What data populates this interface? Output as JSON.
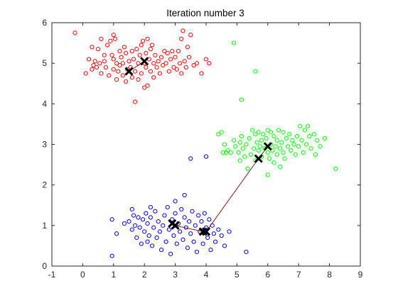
{
  "chart_data": {
    "type": "scatter",
    "title": "Iteration number 3",
    "xlabel": "",
    "ylabel": "",
    "xlim": [
      -1,
      9
    ],
    "ylim": [
      0,
      6
    ],
    "x_ticks": [
      "-1",
      "0",
      "1",
      "2",
      "3",
      "4",
      "5",
      "6",
      "7",
      "8",
      "9"
    ],
    "y_ticks": [
      "0",
      "1",
      "2",
      "3",
      "4",
      "5",
      "6"
    ],
    "grid": false,
    "legend": "none",
    "series": [
      {
        "color": "#ff0000",
        "marker": "circle-open",
        "points": [
          [
            -0.25,
            5.75
          ],
          [
            0.1,
            4.75
          ],
          [
            0.2,
            5.1
          ],
          [
            0.3,
            5.4
          ],
          [
            0.3,
            4.85
          ],
          [
            0.35,
            4.95
          ],
          [
            0.4,
            5.05
          ],
          [
            0.45,
            4.9
          ],
          [
            0.5,
            5.35
          ],
          [
            0.55,
            5.0
          ],
          [
            0.6,
            5.6
          ],
          [
            0.6,
            4.75
          ],
          [
            0.7,
            5.2
          ],
          [
            0.7,
            5.05
          ],
          [
            0.75,
            4.9
          ],
          [
            0.8,
            5.45
          ],
          [
            0.85,
            4.7
          ],
          [
            0.9,
            5.55
          ],
          [
            0.95,
            5.2
          ],
          [
            1.0,
            4.85
          ],
          [
            1.0,
            5.1
          ],
          [
            1.0,
            5.7
          ],
          [
            1.05,
            5.6
          ],
          [
            1.1,
            4.6
          ],
          [
            1.1,
            5.0
          ],
          [
            1.15,
            4.8
          ],
          [
            1.2,
            5.3
          ],
          [
            1.2,
            4.95
          ],
          [
            1.25,
            5.15
          ],
          [
            1.3,
            4.7
          ],
          [
            1.3,
            5.0
          ],
          [
            1.35,
            5.4
          ],
          [
            1.4,
            4.55
          ],
          [
            1.4,
            5.25
          ],
          [
            1.45,
            4.85
          ],
          [
            1.5,
            5.05
          ],
          [
            1.55,
            4.9
          ],
          [
            1.6,
            5.3
          ],
          [
            1.6,
            4.65
          ],
          [
            1.65,
            5.1
          ],
          [
            1.7,
            4.05
          ],
          [
            1.7,
            4.8
          ],
          [
            1.75,
            5.35
          ],
          [
            1.8,
            5.0
          ],
          [
            1.8,
            4.6
          ],
          [
            1.85,
            5.2
          ],
          [
            1.9,
            4.75
          ],
          [
            1.9,
            5.45
          ],
          [
            1.95,
            5.55
          ],
          [
            2.0,
            4.4
          ],
          [
            2.0,
            5.0
          ],
          [
            2.05,
            4.9
          ],
          [
            2.05,
            5.25
          ],
          [
            2.1,
            4.45
          ],
          [
            2.1,
            5.6
          ],
          [
            2.15,
            5.1
          ],
          [
            2.2,
            4.8
          ],
          [
            2.2,
            5.35
          ],
          [
            2.25,
            5.45
          ],
          [
            2.3,
            5.0
          ],
          [
            2.3,
            4.65
          ],
          [
            2.35,
            5.2
          ],
          [
            2.4,
            4.9
          ],
          [
            2.45,
            5.05
          ],
          [
            2.5,
            4.75
          ],
          [
            2.55,
            5.15
          ],
          [
            2.6,
            4.95
          ],
          [
            2.65,
            5.3
          ],
          [
            2.7,
            5.0
          ],
          [
            2.75,
            5.25
          ],
          [
            2.8,
            4.8
          ],
          [
            2.85,
            5.1
          ],
          [
            2.9,
            5.3
          ],
          [
            2.95,
            4.9
          ],
          [
            3.0,
            5.15
          ],
          [
            3.05,
            4.85
          ],
          [
            3.1,
            5.3
          ],
          [
            3.15,
            5.0
          ],
          [
            3.2,
            4.75
          ],
          [
            3.2,
            5.6
          ],
          [
            3.25,
            5.8
          ],
          [
            3.3,
            5.05
          ],
          [
            3.35,
            4.9
          ],
          [
            3.4,
            5.4
          ],
          [
            3.45,
            5.15
          ],
          [
            3.5,
            5.7
          ],
          [
            3.6,
            4.95
          ],
          [
            3.7,
            5.0
          ],
          [
            3.85,
            4.75
          ],
          [
            4.0,
            5.1
          ],
          [
            4.1,
            5.0
          ]
        ]
      },
      {
        "color": "#00ff00",
        "marker": "circle-open",
        "points": [
          [
            4.9,
            5.5
          ],
          [
            5.6,
            4.8
          ],
          [
            5.15,
            4.1
          ],
          [
            5.1,
            3.05
          ],
          [
            4.4,
            3.25
          ],
          [
            4.5,
            3.3
          ],
          [
            4.55,
            2.8
          ],
          [
            4.6,
            3.0
          ],
          [
            4.65,
            2.8
          ],
          [
            4.7,
            2.85
          ],
          [
            4.8,
            2.8
          ],
          [
            4.9,
            3.1
          ],
          [
            4.95,
            2.95
          ],
          [
            5.05,
            2.8
          ],
          [
            5.1,
            2.6
          ],
          [
            5.15,
            3.2
          ],
          [
            5.2,
            2.9
          ],
          [
            5.25,
            2.7
          ],
          [
            5.3,
            3.0
          ],
          [
            5.35,
            2.4
          ],
          [
            5.4,
            3.15
          ],
          [
            5.45,
            2.75
          ],
          [
            5.5,
            3.35
          ],
          [
            5.55,
            2.9
          ],
          [
            5.6,
            3.25
          ],
          [
            5.6,
            2.6
          ],
          [
            5.65,
            3.05
          ],
          [
            5.7,
            2.85
          ],
          [
            5.7,
            3.3
          ],
          [
            5.75,
            2.95
          ],
          [
            5.8,
            3.1
          ],
          [
            5.8,
            2.7
          ],
          [
            5.85,
            3.25
          ],
          [
            5.9,
            2.9
          ],
          [
            5.95,
            3.15
          ],
          [
            6.0,
            2.8
          ],
          [
            6.0,
            3.35
          ],
          [
            6.05,
            2.65
          ],
          [
            6.1,
            3.0
          ],
          [
            6.1,
            3.3
          ],
          [
            6.15,
            2.85
          ],
          [
            6.2,
            3.2
          ],
          [
            6.2,
            2.55
          ],
          [
            6.25,
            2.95
          ],
          [
            6.3,
            2.75
          ],
          [
            6.3,
            3.1
          ],
          [
            6.35,
            3.35
          ],
          [
            6.4,
            2.9
          ],
          [
            6.45,
            3.05
          ],
          [
            6.5,
            2.8
          ],
          [
            6.5,
            3.3
          ],
          [
            6.55,
            2.65
          ],
          [
            6.6,
            3.15
          ],
          [
            6.65,
            2.95
          ],
          [
            6.7,
            3.25
          ],
          [
            6.75,
            2.85
          ],
          [
            6.8,
            3.1
          ],
          [
            6.85,
            3.0
          ],
          [
            6.9,
            2.75
          ],
          [
            6.95,
            3.2
          ],
          [
            7.0,
            2.95
          ],
          [
            7.05,
            3.45
          ],
          [
            7.1,
            3.1
          ],
          [
            7.15,
            2.8
          ],
          [
            7.2,
            3.35
          ],
          [
            7.25,
            3.0
          ],
          [
            7.3,
            3.45
          ],
          [
            7.35,
            3.2
          ],
          [
            7.4,
            2.9
          ],
          [
            7.5,
            3.25
          ],
          [
            7.55,
            2.75
          ],
          [
            7.6,
            3.1
          ],
          [
            7.7,
            2.95
          ],
          [
            7.85,
            3.15
          ],
          [
            8.2,
            2.4
          ],
          [
            6.0,
            2.25
          ],
          [
            6.4,
            2.45
          ]
        ]
      },
      {
        "color": "#0000ff",
        "marker": "circle-open",
        "points": [
          [
            0.95,
            0.25
          ],
          [
            0.95,
            1.15
          ],
          [
            1.1,
            0.8
          ],
          [
            1.35,
            1.05
          ],
          [
            1.5,
            1.1
          ],
          [
            1.6,
            0.9
          ],
          [
            1.65,
            1.25
          ],
          [
            1.7,
            1.0
          ],
          [
            1.75,
            0.7
          ],
          [
            1.8,
            1.2
          ],
          [
            1.85,
            0.95
          ],
          [
            1.9,
            0.55
          ],
          [
            1.95,
            1.15
          ],
          [
            2.0,
            0.85
          ],
          [
            2.05,
            1.3
          ],
          [
            2.1,
            0.6
          ],
          [
            2.1,
            1.05
          ],
          [
            2.15,
            0.75
          ],
          [
            2.2,
            1.2
          ],
          [
            2.25,
            0.5
          ],
          [
            2.3,
            0.95
          ],
          [
            2.35,
            1.35
          ],
          [
            2.4,
            0.7
          ],
          [
            2.45,
            1.1
          ],
          [
            2.5,
            0.85
          ],
          [
            2.55,
            0.4
          ],
          [
            2.6,
            1.0
          ],
          [
            2.65,
            1.25
          ],
          [
            2.7,
            0.6
          ],
          [
            2.75,
            1.45
          ],
          [
            2.8,
            0.9
          ],
          [
            2.85,
            0.3
          ],
          [
            2.9,
            1.15
          ],
          [
            2.95,
            0.75
          ],
          [
            3.0,
            1.3
          ],
          [
            3.05,
            0.55
          ],
          [
            3.1,
            1.05
          ],
          [
            3.15,
            0.85
          ],
          [
            3.2,
            1.4
          ],
          [
            3.25,
            0.65
          ],
          [
            3.3,
            1.2
          ],
          [
            3.35,
            0.95
          ],
          [
            3.4,
            0.45
          ],
          [
            3.45,
            1.1
          ],
          [
            3.5,
            0.8
          ],
          [
            3.5,
            2.65
          ],
          [
            3.55,
            1.35
          ],
          [
            3.6,
            0.6
          ],
          [
            3.65,
            1.0
          ],
          [
            3.7,
            0.35
          ],
          [
            3.75,
            1.25
          ],
          [
            3.8,
            0.85
          ],
          [
            3.85,
            1.1
          ],
          [
            3.9,
            0.55
          ],
          [
            3.95,
            1.3
          ],
          [
            4.0,
            2.7
          ],
          [
            4.0,
            0.95
          ],
          [
            4.05,
            0.7
          ],
          [
            4.1,
            1.15
          ],
          [
            4.15,
            0.4
          ],
          [
            4.2,
            1.0
          ],
          [
            4.25,
            0.8
          ],
          [
            4.3,
            0.6
          ],
          [
            4.4,
            0.9
          ],
          [
            4.5,
            0.75
          ],
          [
            4.6,
            0.5
          ],
          [
            4.75,
            0.85
          ],
          [
            5.3,
            0.35
          ],
          [
            3.3,
            1.75
          ],
          [
            3.0,
            1.6
          ],
          [
            2.2,
            1.45
          ],
          [
            1.6,
            1.4
          ]
        ]
      }
    ],
    "centroid_history": [
      {
        "color": "#ff0000",
        "points": [
          [
            1.5,
            4.8
          ],
          [
            2.0,
            5.05
          ]
        ]
      },
      {
        "color": "#00ff00",
        "points": [
          [
            4.0,
            0.85
          ],
          [
            5.7,
            2.65
          ],
          [
            6.0,
            2.95
          ]
        ]
      },
      {
        "color": "#0000ff",
        "points": [
          [
            3.9,
            0.85
          ],
          [
            3.0,
            1.0
          ],
          [
            2.9,
            1.05
          ]
        ]
      }
    ],
    "centroid_marker_color": "#000000",
    "axis_color": "#262626"
  }
}
